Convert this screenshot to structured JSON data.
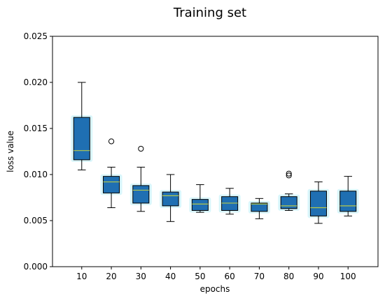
{
  "chart_data": {
    "type": "box",
    "title": "Training set",
    "xlabel": "epochs",
    "ylabel": "loss value",
    "ylim": [
      0.0,
      0.025
    ],
    "yticks": [
      "0.000",
      "0.005",
      "0.010",
      "0.015",
      "0.020",
      "0.025"
    ],
    "yticks_values": [
      0.0,
      0.005,
      0.01,
      0.015,
      0.02,
      0.025
    ],
    "categories": [
      "10",
      "20",
      "30",
      "40",
      "50",
      "60",
      "70",
      "80",
      "90",
      "100"
    ],
    "grid": false,
    "colors": {
      "box_fill": "#1f6fb2",
      "box_edge": "#000000",
      "median": "#b5c94a",
      "whisker": "#000000",
      "halo": "#d9f6fb"
    },
    "boxes": [
      {
        "category": "10",
        "whislo": 0.0105,
        "q1": 0.0116,
        "med": 0.0126,
        "q3": 0.0162,
        "whishi": 0.02,
        "fliers": []
      },
      {
        "category": "20",
        "whislo": 0.0064,
        "q1": 0.008,
        "med": 0.0092,
        "q3": 0.0098,
        "whishi": 0.0108,
        "fliers": [
          0.0136
        ]
      },
      {
        "category": "30",
        "whislo": 0.006,
        "q1": 0.0069,
        "med": 0.0083,
        "q3": 0.0088,
        "whishi": 0.0108,
        "fliers": [
          0.0128
        ]
      },
      {
        "category": "40",
        "whislo": 0.0049,
        "q1": 0.0066,
        "med": 0.0077,
        "q3": 0.0081,
        "whishi": 0.01,
        "fliers": []
      },
      {
        "category": "50",
        "whislo": 0.0059,
        "q1": 0.0061,
        "med": 0.0068,
        "q3": 0.0073,
        "whishi": 0.0089,
        "fliers": []
      },
      {
        "category": "60",
        "whislo": 0.0057,
        "q1": 0.0061,
        "med": 0.0069,
        "q3": 0.0076,
        "whishi": 0.0085,
        "fliers": []
      },
      {
        "category": "70",
        "whislo": 0.0052,
        "q1": 0.006,
        "med": 0.0068,
        "q3": 0.0069,
        "whishi": 0.0074,
        "fliers": []
      },
      {
        "category": "80",
        "whislo": 0.0061,
        "q1": 0.0063,
        "med": 0.0066,
        "q3": 0.0076,
        "whishi": 0.0079,
        "fliers": [
          0.0099,
          0.0101
        ]
      },
      {
        "category": "90",
        "whislo": 0.0047,
        "q1": 0.0055,
        "med": 0.0064,
        "q3": 0.0082,
        "whishi": 0.0092,
        "fliers": []
      },
      {
        "category": "100",
        "whislo": 0.0055,
        "q1": 0.006,
        "med": 0.0066,
        "q3": 0.0082,
        "whishi": 0.0098,
        "fliers": []
      }
    ]
  }
}
